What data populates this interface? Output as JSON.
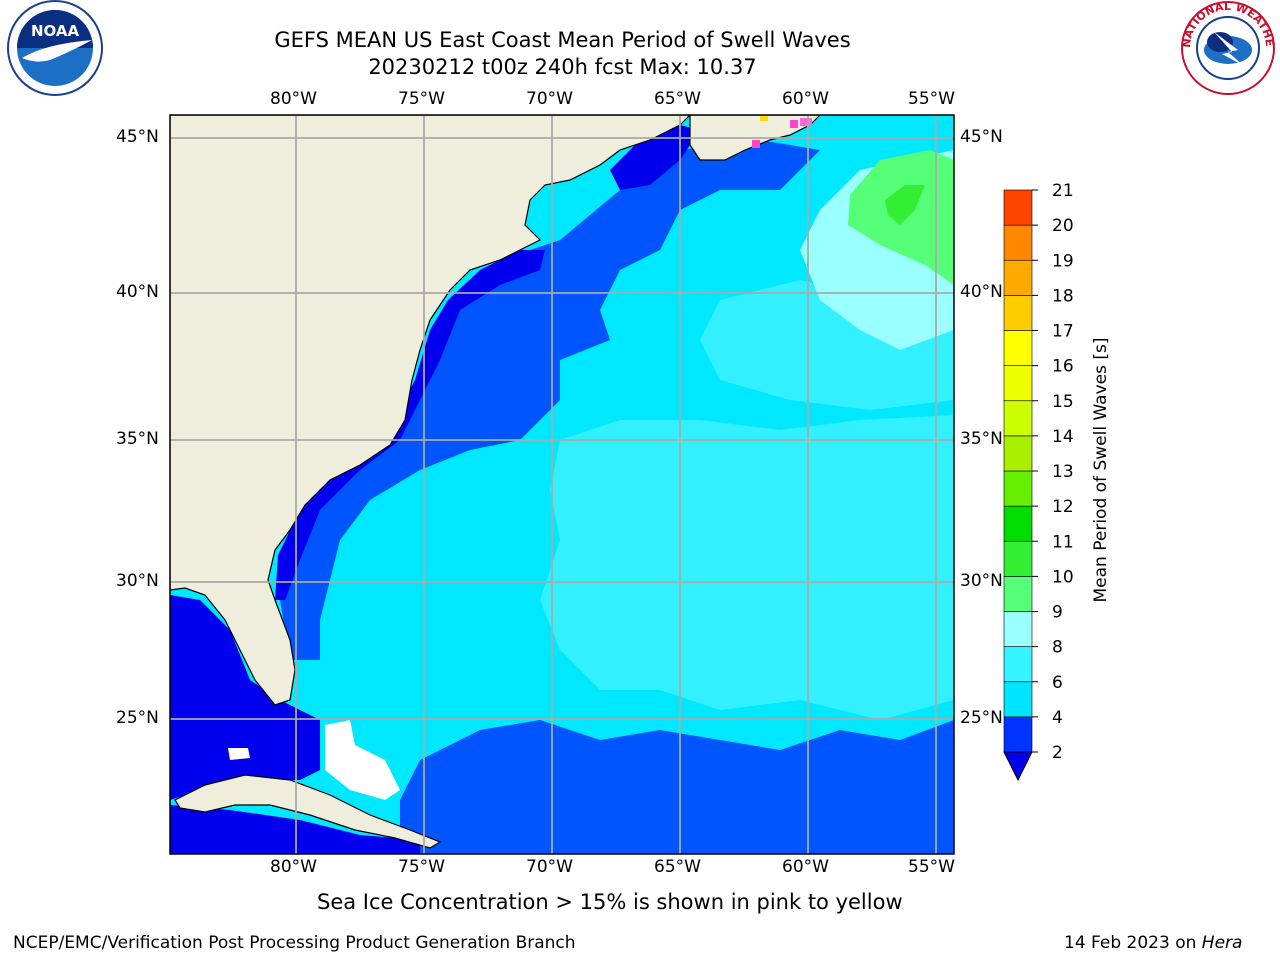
{
  "title_line1": "GEFS MEAN US East Coast Mean Period of Swell Waves",
  "title_line2": "20230212 t00z 240h fcst   Max: 10.37",
  "lon_labels": [
    "80°W",
    "75°W",
    "70°W",
    "65°W",
    "60°W",
    "55°W"
  ],
  "lat_labels": [
    "45°N",
    "40°N",
    "35°N",
    "30°N",
    "25°N"
  ],
  "colorbar": {
    "label": "Mean Period of Swell Waves [s]",
    "ticks": [
      "2",
      "4",
      "6",
      "8",
      "9",
      "10",
      "11",
      "12",
      "13",
      "14",
      "15",
      "16",
      "17",
      "18",
      "19",
      "20",
      "21"
    ],
    "colors": [
      "#0033ff",
      "#00e5ff",
      "#33f5ff",
      "#99ffff",
      "#55ff77",
      "#33ee33",
      "#00dd00",
      "#66ee00",
      "#aaee00",
      "#ccff00",
      "#eeff00",
      "#ffff00",
      "#ffcc00",
      "#ffaa00",
      "#ff8800",
      "#ff4400",
      "#ff0000"
    ],
    "extend_color": "#0000ee"
  },
  "ocean_colors": {
    "deep": "#0000ee",
    "band_2_4": "#0055ff",
    "band_4_6": "#00e8ff",
    "band_6_8": "#33f0ff",
    "band_8_9": "#99ffff",
    "band_9_10": "#55ff77",
    "land": "#efeedd"
  },
  "annotation": "Sea Ice Concentration > 15% is shown in pink to yellow",
  "footer_left": "NCEP/EMC/Verification Post Processing Product Generation Branch",
  "footer_date": "14 Feb 2023 on ",
  "footer_machine": "Hera",
  "logos": {
    "left": "NOAA",
    "right": "NATIONAL WEATHER SERVICE"
  }
}
